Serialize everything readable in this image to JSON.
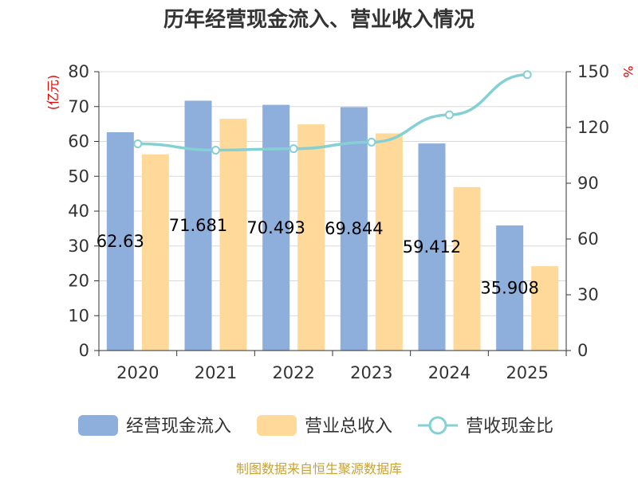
{
  "chart_data": {
    "type": "bar",
    "title": "历年经营现金流入、营业收入情况",
    "categories": [
      "2020",
      "2021",
      "2022",
      "2023",
      "2024",
      "2025"
    ],
    "series": [
      {
        "name": "经营现金流入",
        "type": "bar",
        "axis": "left",
        "color": "#8eaedb",
        "values": [
          62.63,
          71.68,
          70.49,
          69.84,
          59.41,
          35.9
        ],
        "labels": [
          "62.63",
          "71.681",
          "70.493",
          "69.844",
          "59.412",
          "35.908"
        ]
      },
      {
        "name": "营业总收入",
        "type": "bar",
        "axis": "left",
        "color": "#ffd99a",
        "values": [
          56.3,
          66.5,
          64.9,
          62.3,
          46.9,
          24.2
        ]
      },
      {
        "name": "营收现金比",
        "type": "line",
        "axis": "right",
        "color": "#84d0d3",
        "values": [
          111.2,
          107.8,
          108.6,
          112.1,
          126.8,
          148.4
        ]
      }
    ],
    "yleft": {
      "unit": "(亿元)",
      "ylim": [
        0,
        80
      ],
      "ticks": [
        0,
        10,
        20,
        30,
        40,
        50,
        60,
        70,
        80
      ]
    },
    "yright": {
      "unit": "%",
      "ylim": [
        0,
        150
      ],
      "ticks": [
        0,
        30,
        60,
        90,
        120,
        150
      ]
    },
    "grid": true,
    "legend_position": "bottom"
  },
  "source_text": "制图数据来自恒生聚源数据库"
}
